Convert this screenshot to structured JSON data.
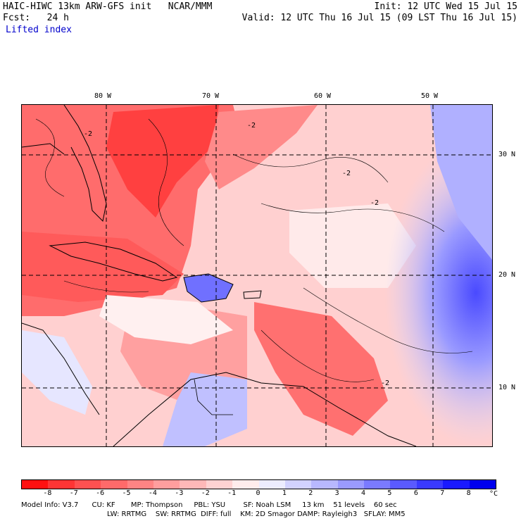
{
  "header": {
    "left_line1": "HAIC-HIWC 13km ARW-GFS init   NCAR/MMM",
    "left_line2": "Fcst:   24 h",
    "field": "Lifted index",
    "right_line1": "Init: 12 UTC Wed 15 Jul 15",
    "right_line2": "Valid: 12 UTC Thu 16 Jul 15 (09 LST Thu 16 Jul 15)"
  },
  "map": {
    "lon_labels": [
      "80 W",
      "70 W",
      "60 W",
      "50 W"
    ],
    "lat_labels": [
      "30 N",
      "20 N",
      "10 N"
    ],
    "contour_label": "-2",
    "colors": {
      "land_outline": "#000000",
      "grid": "#000000"
    }
  },
  "colorbar": {
    "ticks": [
      "-8",
      "-7",
      "-6",
      "-5",
      "-4",
      "-3",
      "-2",
      "-1",
      "0",
      "1",
      "2",
      "3",
      "4",
      "5",
      "6",
      "7",
      "8"
    ],
    "unit": "°C",
    "colors": [
      "#ff1111",
      "#ff3535",
      "#ff5151",
      "#ff6a6a",
      "#ff8484",
      "#ff9e9e",
      "#ffb8b8",
      "#ffd2d2",
      "#ffecec",
      "#ececff",
      "#d2d2ff",
      "#b8b8ff",
      "#9a9aff",
      "#7a7aff",
      "#5a5aff",
      "#3a3aff",
      "#1a1aff",
      "#0000ee"
    ]
  },
  "footer": {
    "line1": "Model Info: V3.7      CU: KF       MP: Thompson     PBL: YSU        SF: Noah LSM     13 km    51 levels    60 sec",
    "line2": "LW: RRTMG    SW: RRTMG  DIFF: full    KM: 2D Smagor DAMP: Rayleigh3   SFLAY: MM5"
  }
}
